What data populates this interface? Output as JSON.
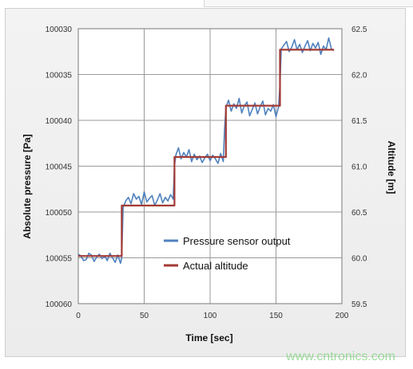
{
  "chart_data": {
    "type": "line",
    "xlabel": "Time [sec]",
    "ylabel_left": "Absolute pressure [Pa]",
    "ylabel_right": "Altitude [m]",
    "xlim": [
      0,
      200
    ],
    "x_ticks": [
      "0",
      "50",
      "100",
      "150",
      "200"
    ],
    "y_left_ticks": [
      "100030",
      "100035",
      "100040",
      "100045",
      "100050",
      "100055",
      "100060"
    ],
    "y_right_ticks": [
      "62.5",
      "62.0",
      "61.5",
      "61.0",
      "60.5",
      "60.0",
      "59.5"
    ],
    "y_right_lim": [
      59.5,
      62.5
    ],
    "grid": true,
    "legend_position": "lower-center",
    "series": [
      {
        "name": "Pressure sensor output",
        "color": "#4f81bd",
        "x": [
          0,
          2,
          4,
          6,
          8,
          10,
          12,
          14,
          16,
          18,
          20,
          22,
          24,
          26,
          28,
          30,
          32,
          33,
          34,
          36,
          38,
          40,
          42,
          44,
          46,
          48,
          50,
          52,
          54,
          56,
          58,
          60,
          62,
          64,
          66,
          68,
          70,
          72,
          73,
          74,
          76,
          78,
          80,
          82,
          84,
          86,
          88,
          90,
          92,
          94,
          96,
          98,
          100,
          102,
          104,
          106,
          108,
          110,
          111,
          112,
          114,
          116,
          118,
          120,
          122,
          124,
          126,
          128,
          130,
          132,
          134,
          136,
          138,
          140,
          142,
          144,
          146,
          148,
          150,
          152,
          153,
          154,
          156,
          158,
          160,
          162,
          164,
          166,
          168,
          170,
          172,
          174,
          176,
          178,
          180,
          182,
          184,
          186,
          188,
          190,
          192,
          194
        ],
        "y": [
          60.04,
          60.02,
          59.97,
          59.98,
          60.05,
          60.03,
          59.96,
          60.01,
          60.04,
          59.99,
          60.02,
          59.97,
          60.05,
          60.0,
          59.95,
          60.03,
          59.94,
          60.0,
          60.55,
          60.62,
          60.66,
          60.59,
          60.7,
          60.64,
          60.67,
          60.58,
          60.72,
          60.61,
          60.65,
          60.68,
          60.57,
          60.63,
          60.7,
          60.6,
          60.66,
          60.62,
          60.69,
          60.64,
          61.0,
          61.12,
          61.2,
          61.08,
          61.15,
          61.1,
          61.18,
          61.05,
          61.13,
          61.07,
          61.11,
          61.04,
          61.09,
          61.13,
          61.06,
          61.12,
          61.08,
          61.03,
          61.14,
          61.05,
          61.4,
          61.64,
          61.72,
          61.6,
          61.68,
          61.63,
          61.74,
          61.58,
          61.66,
          61.7,
          61.55,
          61.62,
          61.69,
          61.57,
          61.65,
          61.71,
          61.56,
          61.63,
          61.6,
          61.67,
          61.54,
          61.65,
          61.9,
          62.28,
          62.32,
          62.36,
          62.25,
          62.3,
          62.38,
          62.27,
          62.33,
          62.24,
          62.31,
          62.37,
          62.26,
          62.34,
          62.29,
          62.35,
          62.22,
          62.31,
          62.27,
          62.4,
          62.28,
          62.26
        ]
      },
      {
        "name": "Actual altitude",
        "color": "#a33a35",
        "x": [
          0,
          33,
          33,
          73,
          73,
          112,
          112,
          153,
          153,
          194
        ],
        "y": [
          60.02,
          60.02,
          60.57,
          60.57,
          61.1,
          61.1,
          61.66,
          61.66,
          62.27,
          62.27
        ]
      }
    ]
  },
  "watermark": "www.cntronics.com"
}
